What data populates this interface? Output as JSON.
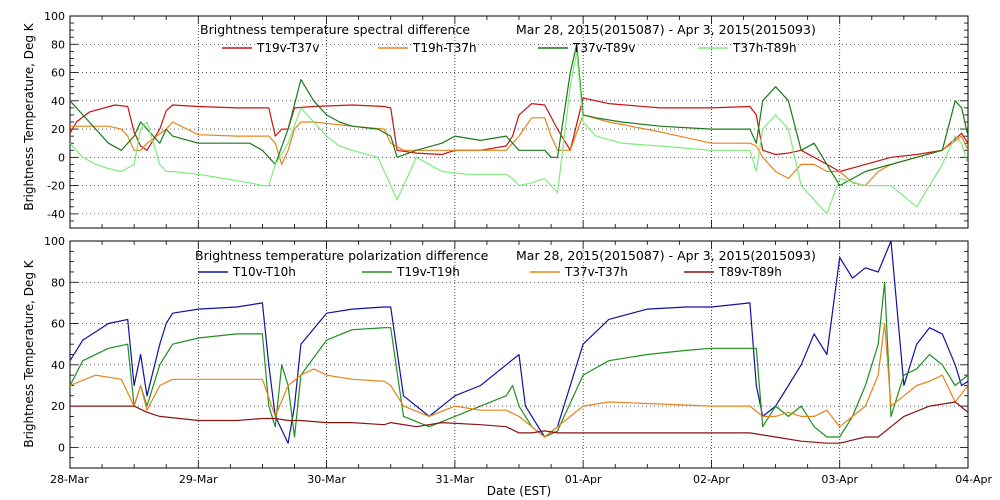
{
  "chart_data": [
    {
      "type": "line",
      "title": "Brightness temperature spectral difference",
      "subtitle": "Mar 28, 2015(2015087) - Apr  3, 2015(2015093)",
      "xlabel": "",
      "ylabel": "Brightness Temperature, Deg K",
      "ylim": [
        -50,
        100
      ],
      "yticks": [
        -40,
        -20,
        0,
        20,
        40,
        60,
        80,
        100
      ],
      "xlim": [
        0,
        7
      ],
      "grid": true,
      "legend": "top",
      "series": [
        {
          "name": "T19v-T37v",
          "color": "#c81414",
          "x": [
            0,
            0.05,
            0.15,
            0.35,
            0.45,
            0.5,
            0.55,
            0.6,
            0.7,
            0.75,
            0.8,
            1.0,
            1.3,
            1.55,
            1.6,
            1.65,
            1.7,
            1.75,
            1.9,
            2.2,
            2.45,
            2.5,
            2.55,
            2.7,
            2.9,
            3.0,
            3.2,
            3.4,
            3.45,
            3.5,
            3.6,
            3.7,
            3.8,
            3.9,
            4.0,
            4.2,
            4.6,
            5.0,
            5.3,
            5.35,
            5.4,
            5.5,
            5.6,
            5.7,
            5.8,
            5.9,
            6.0,
            6.2,
            6.4,
            6.6,
            6.8,
            6.95,
            7.0
          ],
          "values": [
            17,
            25,
            32,
            37,
            36,
            18,
            8,
            5,
            20,
            33,
            37,
            36,
            35,
            35,
            15,
            20,
            20,
            35,
            36,
            37,
            36,
            35,
            5,
            3,
            2,
            5,
            5,
            8,
            15,
            30,
            38,
            37,
            20,
            5,
            42,
            38,
            35,
            35,
            36,
            30,
            5,
            2,
            3,
            5,
            0,
            -5,
            -10,
            -5,
            0,
            2,
            5,
            17,
            10
          ]
        },
        {
          "name": "T19h-T37h",
          "color": "#e8841c",
          "x": [
            0,
            0.1,
            0.3,
            0.4,
            0.45,
            0.5,
            0.55,
            0.6,
            0.75,
            0.8,
            1.0,
            1.3,
            1.55,
            1.6,
            1.65,
            1.7,
            1.75,
            1.8,
            1.9,
            2.2,
            2.45,
            2.5,
            2.6,
            2.9,
            3.1,
            3.4,
            3.45,
            3.5,
            3.6,
            3.7,
            3.75,
            3.8,
            3.9,
            4.0,
            4.2,
            4.6,
            5.0,
            5.3,
            5.35,
            5.4,
            5.5,
            5.6,
            5.7,
            5.8,
            5.9,
            6.0,
            6.1,
            6.2,
            6.3,
            6.4,
            6.6,
            6.8,
            6.95,
            7.0
          ],
          "values": [
            22,
            22,
            22,
            20,
            15,
            5,
            5,
            10,
            20,
            25,
            16,
            15,
            15,
            10,
            -5,
            5,
            20,
            25,
            25,
            22,
            20,
            10,
            5,
            5,
            5,
            5,
            10,
            15,
            28,
            28,
            15,
            5,
            5,
            30,
            25,
            18,
            10,
            10,
            8,
            0,
            -10,
            -15,
            -5,
            -5,
            -10,
            -10,
            -18,
            -20,
            -10,
            -5,
            0,
            5,
            15,
            5
          ]
        },
        {
          "name": "T37v-T89v",
          "color": "#1a7a1a",
          "x": [
            0,
            0.1,
            0.2,
            0.3,
            0.4,
            0.5,
            0.55,
            0.6,
            0.7,
            0.75,
            0.8,
            1.0,
            1.2,
            1.4,
            1.5,
            1.55,
            1.6,
            1.7,
            1.8,
            1.9,
            2.0,
            2.1,
            2.2,
            2.4,
            2.5,
            2.55,
            2.7,
            2.9,
            3.0,
            3.2,
            3.4,
            3.45,
            3.5,
            3.6,
            3.7,
            3.75,
            3.8,
            3.9,
            3.95,
            4.0,
            4.1,
            4.3,
            4.6,
            5.0,
            5.3,
            5.35,
            5.4,
            5.45,
            5.5,
            5.6,
            5.7,
            5.8,
            5.9,
            6.0,
            6.2,
            6.4,
            6.6,
            6.8,
            6.9,
            6.95,
            7.0
          ],
          "values": [
            40,
            30,
            20,
            10,
            5,
            15,
            25,
            20,
            10,
            20,
            15,
            10,
            10,
            10,
            5,
            0,
            -5,
            20,
            55,
            40,
            30,
            25,
            22,
            20,
            15,
            0,
            5,
            10,
            15,
            12,
            15,
            10,
            5,
            5,
            5,
            0,
            0,
            60,
            80,
            30,
            28,
            25,
            22,
            20,
            20,
            10,
            40,
            45,
            50,
            40,
            5,
            10,
            -5,
            -20,
            -10,
            -5,
            0,
            5,
            40,
            35,
            15
          ]
        },
        {
          "name": "T37h-T89h",
          "color": "#7ced7c",
          "x": [
            0,
            0.1,
            0.2,
            0.3,
            0.4,
            0.5,
            0.55,
            0.6,
            0.7,
            0.75,
            0.8,
            1.0,
            1.2,
            1.4,
            1.5,
            1.55,
            1.6,
            1.7,
            1.8,
            1.9,
            2.0,
            2.1,
            2.2,
            2.4,
            2.5,
            2.55,
            2.7,
            2.9,
            3.1,
            3.3,
            3.4,
            3.45,
            3.5,
            3.6,
            3.7,
            3.75,
            3.8,
            3.9,
            3.95,
            4.0,
            4.1,
            4.3,
            4.6,
            5.0,
            5.3,
            5.35,
            5.4,
            5.45,
            5.5,
            5.6,
            5.7,
            5.8,
            5.9,
            6.0,
            6.2,
            6.4,
            6.6,
            6.8,
            6.9,
            6.95,
            7.0
          ],
          "values": [
            10,
            0,
            -5,
            -8,
            -10,
            -5,
            20,
            25,
            -5,
            -10,
            -10,
            -12,
            -15,
            -18,
            -20,
            -20,
            -5,
            10,
            35,
            25,
            15,
            8,
            5,
            0,
            -20,
            -30,
            0,
            -10,
            -12,
            -12,
            -12,
            -15,
            -20,
            -18,
            -15,
            -20,
            -25,
            50,
            75,
            25,
            15,
            10,
            8,
            5,
            5,
            -10,
            20,
            25,
            30,
            20,
            -20,
            -30,
            -40,
            -15,
            -20,
            -20,
            -35,
            -5,
            15,
            10,
            -5
          ]
        }
      ]
    },
    {
      "type": "line",
      "title": "Brightness temperature polarization difference",
      "subtitle": "Mar 28, 2015(2015087) - Apr  3, 2015(2015093)",
      "xlabel": "Date (EST)",
      "ylabel": "Brightness Temperature, Deg K",
      "ylim": [
        -10,
        100
      ],
      "yticks": [
        0,
        20,
        40,
        60,
        80,
        100
      ],
      "xlim": [
        0,
        7
      ],
      "xticks": [
        "28-Mar",
        "29-Mar",
        "30-Mar",
        "31-Mar",
        "01-Apr",
        "02-Apr",
        "03-Apr",
        "04-Apr"
      ],
      "grid": true,
      "legend": "top",
      "series": [
        {
          "name": "T10v-T10h",
          "color": "#1212a0",
          "x": [
            0,
            0.1,
            0.3,
            0.45,
            0.5,
            0.55,
            0.6,
            0.7,
            0.75,
            0.8,
            1.0,
            1.3,
            1.5,
            1.55,
            1.6,
            1.7,
            1.75,
            1.8,
            2.0,
            2.2,
            2.45,
            2.5,
            2.6,
            2.8,
            3.0,
            3.2,
            3.4,
            3.5,
            3.55,
            3.65,
            3.7,
            3.8,
            4.0,
            4.2,
            4.5,
            4.8,
            5.0,
            5.3,
            5.35,
            5.4,
            5.5,
            5.6,
            5.7,
            5.8,
            5.9,
            6.0,
            6.1,
            6.2,
            6.3,
            6.4,
            6.5,
            6.6,
            6.7,
            6.8,
            6.9,
            6.95,
            7.0
          ],
          "values": [
            42,
            52,
            60,
            62,
            30,
            45,
            25,
            50,
            60,
            65,
            67,
            68,
            70,
            40,
            15,
            2,
            20,
            50,
            65,
            67,
            68,
            68,
            25,
            15,
            25,
            30,
            40,
            45,
            20,
            10,
            5,
            10,
            50,
            62,
            67,
            68,
            68,
            70,
            30,
            15,
            20,
            30,
            40,
            55,
            45,
            92,
            82,
            87,
            85,
            100,
            30,
            50,
            58,
            55,
            40,
            30,
            32
          ]
        },
        {
          "name": "T19v-T19h",
          "color": "#1e901e",
          "x": [
            0,
            0.1,
            0.3,
            0.45,
            0.5,
            0.55,
            0.6,
            0.7,
            0.75,
            0.8,
            1.0,
            1.3,
            1.5,
            1.55,
            1.6,
            1.65,
            1.7,
            1.75,
            1.8,
            2.0,
            2.2,
            2.45,
            2.5,
            2.6,
            2.8,
            3.0,
            3.2,
            3.4,
            3.45,
            3.5,
            3.6,
            3.7,
            3.8,
            4.0,
            4.2,
            4.5,
            4.8,
            5.0,
            5.3,
            5.35,
            5.4,
            5.5,
            5.6,
            5.7,
            5.8,
            5.9,
            6.0,
            6.1,
            6.2,
            6.3,
            6.35,
            6.4,
            6.5,
            6.6,
            6.7,
            6.8,
            6.9,
            7.0
          ],
          "values": [
            30,
            42,
            48,
            50,
            20,
            30,
            20,
            40,
            45,
            50,
            53,
            55,
            55,
            20,
            10,
            40,
            30,
            5,
            35,
            52,
            57,
            58,
            58,
            15,
            10,
            15,
            20,
            25,
            30,
            20,
            10,
            5,
            8,
            35,
            42,
            45,
            47,
            48,
            48,
            48,
            10,
            20,
            15,
            20,
            10,
            5,
            5,
            15,
            30,
            50,
            80,
            15,
            35,
            38,
            45,
            40,
            30,
            35
          ]
        },
        {
          "name": "T37v-T37h",
          "color": "#e8841c",
          "x": [
            0,
            0.2,
            0.4,
            0.5,
            0.55,
            0.6,
            0.7,
            0.8,
            1.0,
            1.3,
            1.5,
            1.6,
            1.7,
            1.8,
            1.9,
            2.0,
            2.2,
            2.45,
            2.5,
            2.6,
            2.8,
            3.0,
            3.2,
            3.4,
            3.5,
            3.6,
            3.7,
            3.8,
            4.0,
            4.2,
            4.6,
            5.0,
            5.3,
            5.4,
            5.5,
            5.6,
            5.7,
            5.8,
            5.9,
            6.0,
            6.1,
            6.2,
            6.3,
            6.35,
            6.4,
            6.5,
            6.6,
            6.7,
            6.8,
            6.9,
            7.0
          ],
          "values": [
            30,
            35,
            33,
            20,
            30,
            18,
            30,
            33,
            33,
            33,
            33,
            15,
            30,
            35,
            38,
            35,
            33,
            32,
            30,
            20,
            15,
            20,
            18,
            18,
            15,
            10,
            5,
            10,
            20,
            22,
            21,
            20,
            20,
            15,
            15,
            17,
            15,
            15,
            18,
            10,
            15,
            20,
            35,
            60,
            20,
            25,
            30,
            32,
            35,
            22,
            30
          ]
        },
        {
          "name": "T89v-T89h",
          "color": "#8a1414",
          "x": [
            0,
            0.3,
            0.5,
            0.6,
            0.7,
            1.0,
            1.3,
            1.5,
            1.6,
            1.7,
            1.8,
            2.0,
            2.2,
            2.45,
            2.5,
            2.7,
            2.9,
            3.2,
            3.4,
            3.5,
            3.6,
            3.7,
            3.8,
            4.0,
            4.5,
            5.0,
            5.3,
            5.5,
            5.7,
            5.9,
            6.0,
            6.2,
            6.3,
            6.4,
            6.5,
            6.7,
            6.9,
            7.0
          ],
          "values": [
            20,
            20,
            20,
            17,
            15,
            13,
            13,
            14,
            14,
            13,
            13,
            12,
            12,
            11,
            12,
            10,
            12,
            11,
            10,
            7,
            7,
            8,
            7,
            7,
            7,
            7,
            7,
            5,
            3,
            2,
            2,
            5,
            5,
            10,
            15,
            20,
            22,
            17
          ]
        }
      ]
    }
  ]
}
